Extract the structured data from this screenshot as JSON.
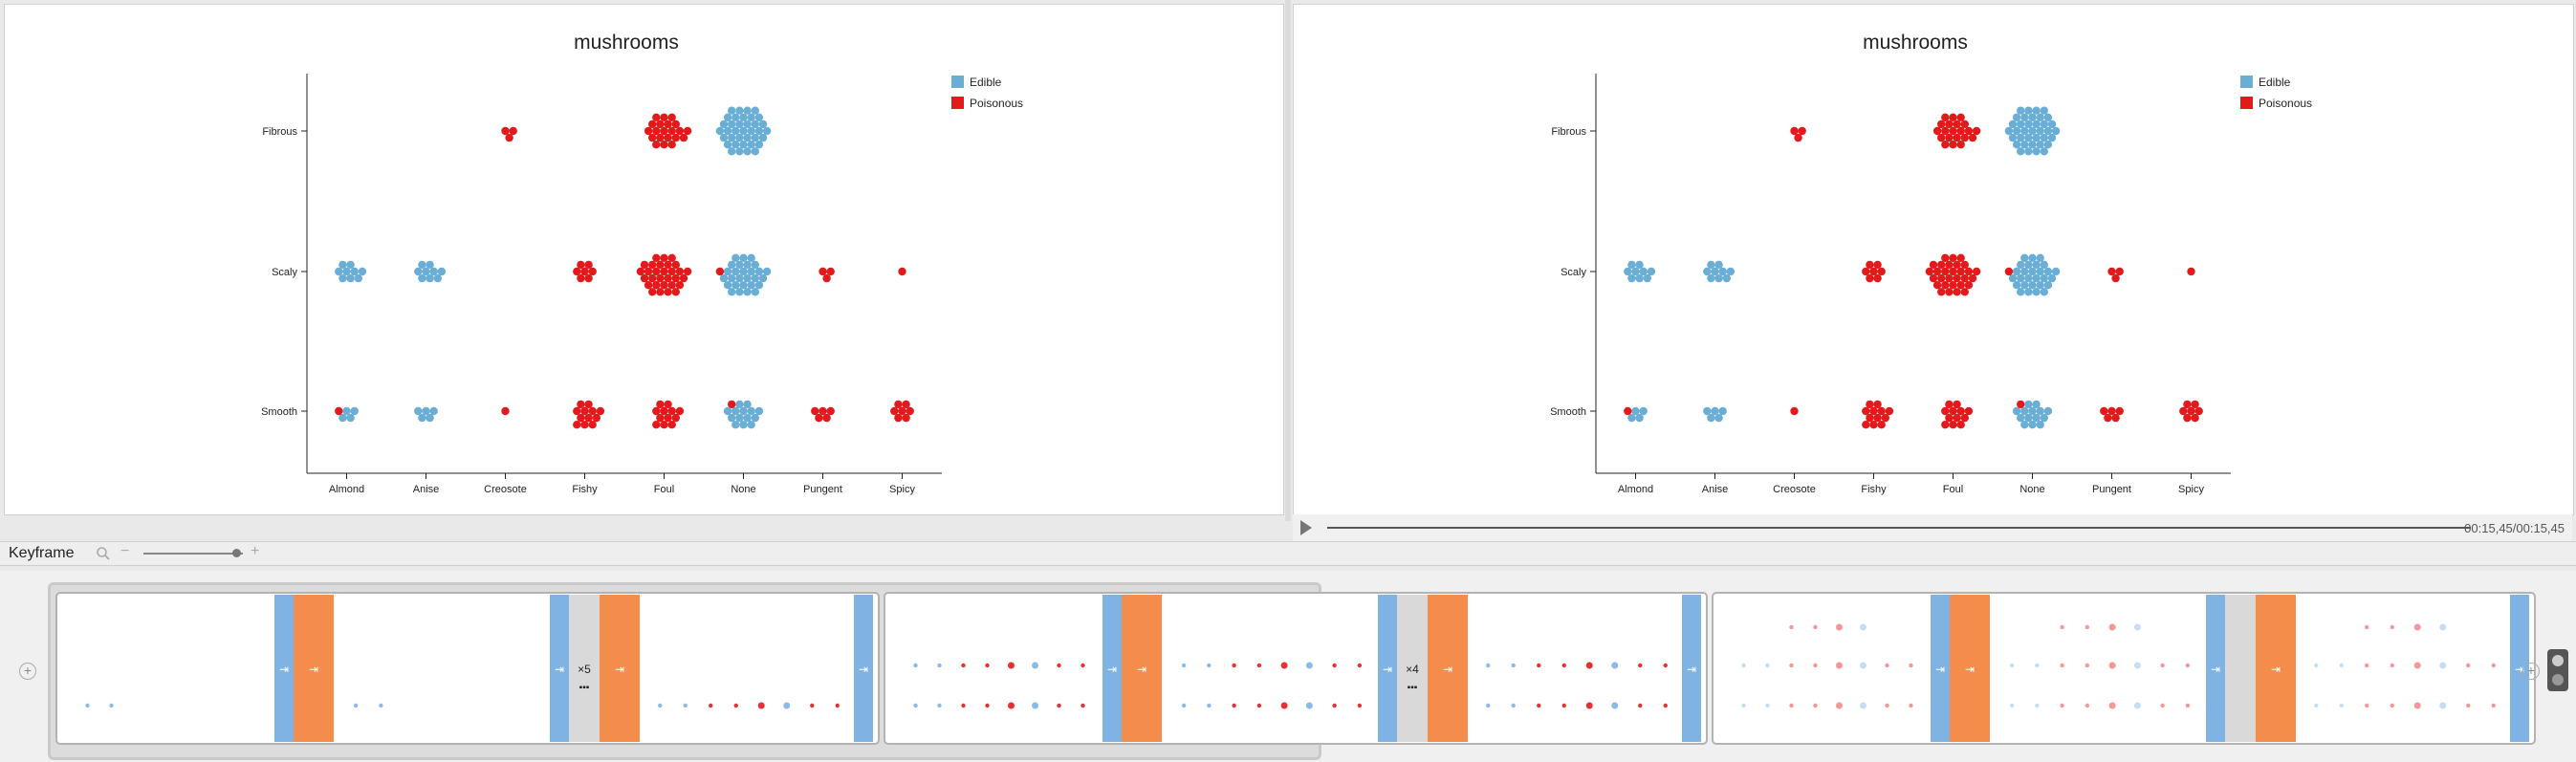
{
  "colors": {
    "edible": "#6aaed6",
    "poisonous": "#e31a1c",
    "transition_blue": "#7fb3e4",
    "transition_orange": "#f48c4c"
  },
  "chart_data": [
    {
      "type": "scatter",
      "title": "mushrooms",
      "xlabel": "",
      "ylabel": "",
      "x_categories": [
        "Almond",
        "Anise",
        "Creosote",
        "Fishy",
        "Foul",
        "None",
        "Pungent",
        "Spicy"
      ],
      "y_categories": [
        "Smooth",
        "Scaly",
        "Fibrous"
      ],
      "legend": {
        "placement": "top-right",
        "entries": [
          "Edible",
          "Poisonous"
        ]
      },
      "series": [
        {
          "name": "Edible",
          "cells": [
            {
              "x": "Almond",
              "y": "Smooth",
              "count": 4
            },
            {
              "x": "Anise",
              "y": "Smooth",
              "count": 5
            },
            {
              "x": "None",
              "y": "Smooth",
              "count": 14
            },
            {
              "x": "Almond",
              "y": "Scaly",
              "count": 9
            },
            {
              "x": "Anise",
              "y": "Scaly",
              "count": 9
            },
            {
              "x": "None",
              "y": "Scaly",
              "count": 28
            },
            {
              "x": "None",
              "y": "Fibrous",
              "count": 37
            }
          ]
        },
        {
          "name": "Poisonous",
          "cells": [
            {
              "x": "Almond",
              "y": "Smooth",
              "count": 1
            },
            {
              "x": "Creosote",
              "y": "Smooth",
              "count": 1
            },
            {
              "x": "Fishy",
              "y": "Smooth",
              "count": 12
            },
            {
              "x": "Foul",
              "y": "Smooth",
              "count": 12
            },
            {
              "x": "None",
              "y": "Smooth",
              "count": 1
            },
            {
              "x": "Pungent",
              "y": "Smooth",
              "count": 5
            },
            {
              "x": "Spicy",
              "y": "Smooth",
              "count": 7
            },
            {
              "x": "Fishy",
              "y": "Scaly",
              "count": 7
            },
            {
              "x": "Foul",
              "y": "Scaly",
              "count": 30
            },
            {
              "x": "None",
              "y": "Scaly",
              "count": 1
            },
            {
              "x": "Pungent",
              "y": "Scaly",
              "count": 3
            },
            {
              "x": "Spicy",
              "y": "Scaly",
              "count": 1
            },
            {
              "x": "Creosote",
              "y": "Fibrous",
              "count": 3
            },
            {
              "x": "Foul",
              "y": "Fibrous",
              "count": 21
            }
          ]
        }
      ]
    }
  ],
  "player": {
    "time": "00:15,45/00:15,45"
  },
  "toolbar": {
    "title": "Keyframe",
    "zoom_minus": "−",
    "zoom_plus": "+",
    "zoom_level": 0.93
  },
  "timeline": {
    "add_symbol": "+",
    "groups": [
      {
        "repeat": "×5",
        "more": "▪▪▪"
      },
      {
        "repeat": "×4",
        "more": "▪▪▪"
      },
      {
        "repeat": "",
        "more": ""
      }
    ]
  }
}
